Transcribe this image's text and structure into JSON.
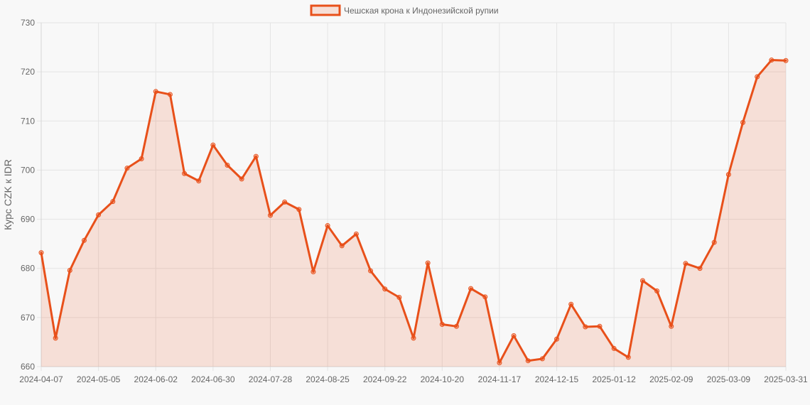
{
  "chart_data": {
    "type": "area",
    "title": "",
    "xlabel": "",
    "ylabel": "Курс CZK к IDR",
    "ylim": [
      660,
      730
    ],
    "yticks": [
      660,
      670,
      680,
      690,
      700,
      710,
      720,
      730
    ],
    "xtick_labels": [
      "2024-04-07",
      "2024-05-05",
      "2024-06-02",
      "2024-06-30",
      "2024-07-28",
      "2024-08-25",
      "2024-09-22",
      "2024-10-20",
      "2024-11-17",
      "2024-12-15",
      "2025-01-12",
      "2025-02-09",
      "2025-03-09",
      "2025-03-31"
    ],
    "grid": true,
    "legend": "top-center",
    "x": [
      "2024-04-07",
      "2024-04-14",
      "2024-04-21",
      "2024-04-28",
      "2024-05-05",
      "2024-05-12",
      "2024-05-19",
      "2024-05-26",
      "2024-06-02",
      "2024-06-09",
      "2024-06-16",
      "2024-06-23",
      "2024-06-30",
      "2024-07-07",
      "2024-07-14",
      "2024-07-21",
      "2024-07-28",
      "2024-08-04",
      "2024-08-11",
      "2024-08-18",
      "2024-08-25",
      "2024-09-01",
      "2024-09-08",
      "2024-09-15",
      "2024-09-22",
      "2024-09-29",
      "2024-10-06",
      "2024-10-13",
      "2024-10-20",
      "2024-10-27",
      "2024-11-03",
      "2024-11-10",
      "2024-11-17",
      "2024-11-24",
      "2024-12-01",
      "2024-12-08",
      "2024-12-15",
      "2024-12-22",
      "2024-12-29",
      "2025-01-05",
      "2025-01-12",
      "2025-01-19",
      "2025-01-26",
      "2025-02-02",
      "2025-02-09",
      "2025-02-16",
      "2025-02-23",
      "2025-03-02",
      "2025-03-09",
      "2025-03-16",
      "2025-03-23",
      "2025-03-30",
      "2025-03-31"
    ],
    "series": [
      {
        "name": "Чешская крона к Индонезийской рупии",
        "color": "#e8501a",
        "fill": "rgba(232,80,26,0.15)",
        "values": [
          683.2,
          665.8,
          679.6,
          685.7,
          690.9,
          693.6,
          700.4,
          702.3,
          716.0,
          715.4,
          699.3,
          697.8,
          705.1,
          701.0,
          698.2,
          702.8,
          690.8,
          693.5,
          692.0,
          679.3,
          688.7,
          684.6,
          687.0,
          679.5,
          675.8,
          674.1,
          665.8,
          681.1,
          668.6,
          668.2,
          675.9,
          674.2,
          660.8,
          666.3,
          661.2,
          661.6,
          665.6,
          672.7,
          668.1,
          668.2,
          663.7,
          661.9,
          677.5,
          675.4,
          668.2,
          681.0,
          680.0,
          685.3,
          699.1,
          709.7,
          719.0,
          722.4,
          722.3
        ]
      }
    ]
  }
}
